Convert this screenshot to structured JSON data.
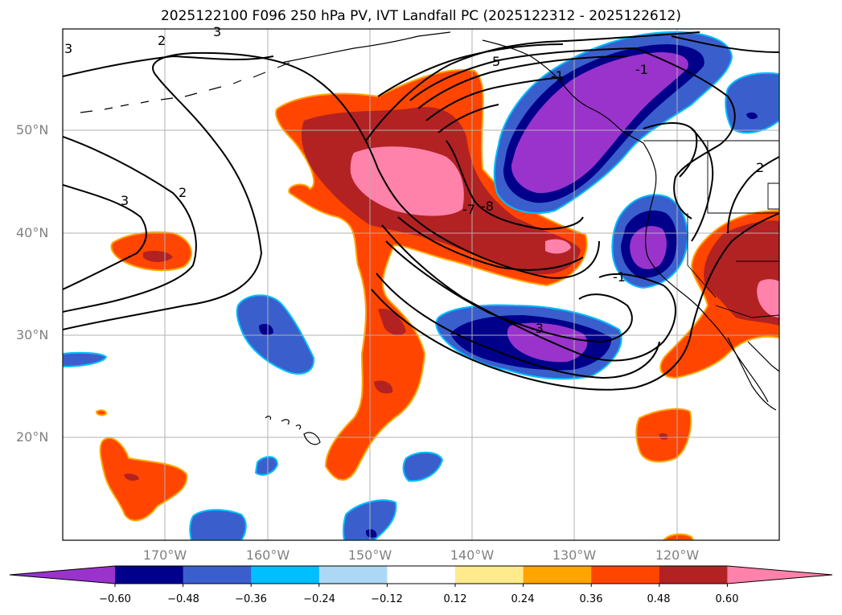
{
  "title": "2025122100 F096 250 hPa PV, IVT Landfall PC (2025122312 - 2025122612)",
  "lat_labels": [
    "50°N",
    "40°N",
    "30°N",
    "20°N"
  ],
  "lon_labels": [
    "170°W",
    "160°W",
    "150°W",
    "140°W",
    "130°W",
    "120°W"
  ],
  "contour_labels": [
    "3",
    "2",
    "3",
    "2",
    "3",
    "5",
    "-1",
    "-1",
    "-8",
    "-7",
    "-3",
    "-1",
    "2"
  ],
  "colorbar": {
    "ticks": [
      "−0.60",
      "−0.48",
      "−0.36",
      "−0.24",
      "−0.12",
      "0.12",
      "0.24",
      "0.36",
      "0.48",
      "0.60"
    ],
    "colors": [
      "#9933cc",
      "#00008b",
      "#3a5fcd",
      "#00bfff",
      "#add8f5",
      "#ffffff",
      "#ffea8c",
      "#ffa500",
      "#ff4500",
      "#b22222",
      "#ff82ab"
    ]
  },
  "fill_colors": {
    "purple": "#9933cc",
    "navy": "#00008b",
    "blue": "#3a5fcd",
    "sky": "#00bfff",
    "pale_blue": "#add8f5",
    "yellow": "#ffea8c",
    "orange": "#ffa500",
    "red_orange": "#ff4500",
    "firebrick": "#b22222",
    "pink": "#ff82ab"
  }
}
